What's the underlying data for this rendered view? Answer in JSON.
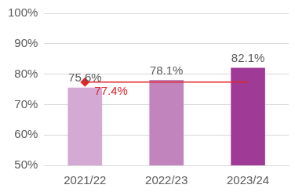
{
  "chart_data": {
    "type": "bar",
    "categories": [
      "2021/22",
      "2022/23",
      "2023/24"
    ],
    "values": [
      75.6,
      78.1,
      82.1
    ],
    "value_labels": [
      "75.6%",
      "78.1%",
      "82.1%"
    ],
    "colors": [
      "#d4a9d3",
      "#c184bd",
      "#a03a97"
    ],
    "data_labels": true,
    "ylim": [
      50,
      100
    ],
    "yticks": [
      {
        "value": 50,
        "label": "50%"
      },
      {
        "value": 60,
        "label": "60%"
      },
      {
        "value": 70,
        "label": "70%"
      },
      {
        "value": 80,
        "label": "80%"
      },
      {
        "value": 90,
        "label": "90%"
      },
      {
        "value": 100,
        "label": "100%"
      }
    ],
    "grid": true,
    "annotations": [
      {
        "label": "77.4%",
        "y": 77.4,
        "color": "#e0262b",
        "marker": "diamond",
        "line_style": "solid"
      }
    ]
  }
}
